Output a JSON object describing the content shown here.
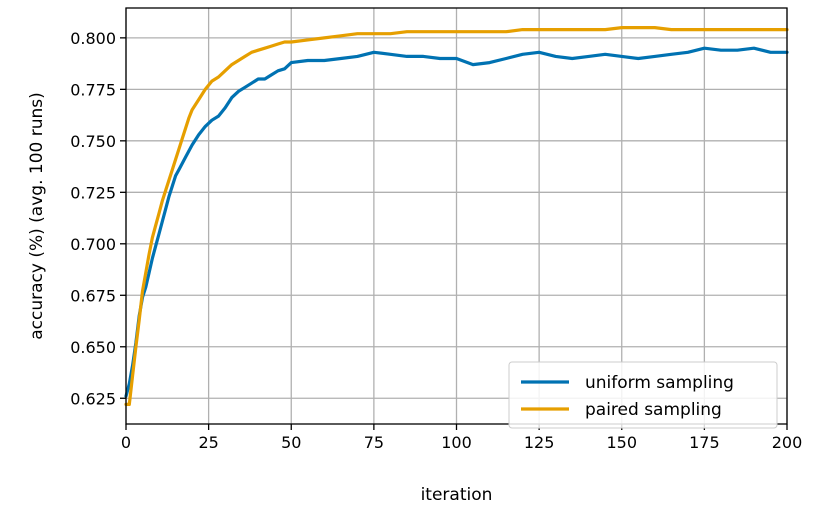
{
  "chart_data": {
    "type": "line",
    "title": "",
    "xlabel": "iteration",
    "ylabel": "accuracy (%) (avg. 100 runs)",
    "xlim": [
      0,
      200
    ],
    "ylim": [
      0.6125,
      0.8145
    ],
    "xticks": [
      "0",
      "25",
      "50",
      "75",
      "100",
      "125",
      "150",
      "175",
      "200"
    ],
    "yticks": [
      "0.625",
      "0.650",
      "0.675",
      "0.700",
      "0.725",
      "0.750",
      "0.775",
      "0.800"
    ],
    "grid": true,
    "legend_position": "lower-right",
    "x": [
      0,
      1,
      2,
      3,
      4,
      5,
      6,
      7,
      8,
      9,
      10,
      11,
      12,
      13,
      14,
      15,
      16,
      17,
      18,
      19,
      20,
      22,
      24,
      26,
      28,
      30,
      32,
      34,
      36,
      38,
      40,
      42,
      44,
      46,
      48,
      50,
      55,
      60,
      65,
      70,
      75,
      80,
      85,
      90,
      95,
      100,
      105,
      110,
      115,
      120,
      125,
      130,
      135,
      140,
      145,
      150,
      155,
      160,
      165,
      170,
      175,
      180,
      185,
      190,
      195,
      200
    ],
    "series": [
      {
        "name": "uniform sampling",
        "color": "#0072b2",
        "values": [
          0.626,
          0.632,
          0.641,
          0.652,
          0.665,
          0.674,
          0.679,
          0.686,
          0.693,
          0.699,
          0.705,
          0.711,
          0.717,
          0.723,
          0.728,
          0.733,
          0.736,
          0.739,
          0.742,
          0.745,
          0.748,
          0.753,
          0.757,
          0.76,
          0.762,
          0.766,
          0.771,
          0.774,
          0.776,
          0.778,
          0.78,
          0.78,
          0.782,
          0.784,
          0.785,
          0.788,
          0.789,
          0.789,
          0.79,
          0.791,
          0.793,
          0.792,
          0.791,
          0.791,
          0.79,
          0.79,
          0.787,
          0.788,
          0.79,
          0.792,
          0.793,
          0.791,
          0.79,
          0.791,
          0.792,
          0.791,
          0.79,
          0.791,
          0.792,
          0.793,
          0.795,
          0.794,
          0.794,
          0.795,
          0.793,
          0.793
        ]
      },
      {
        "name": "paired sampling",
        "color": "#e69f00",
        "values": [
          0.622,
          0.622,
          0.636,
          0.65,
          0.663,
          0.677,
          0.686,
          0.695,
          0.703,
          0.709,
          0.715,
          0.721,
          0.726,
          0.731,
          0.736,
          0.741,
          0.746,
          0.751,
          0.756,
          0.761,
          0.765,
          0.77,
          0.775,
          0.779,
          0.781,
          0.784,
          0.787,
          0.789,
          0.791,
          0.793,
          0.794,
          0.795,
          0.796,
          0.797,
          0.798,
          0.798,
          0.799,
          0.8,
          0.801,
          0.802,
          0.802,
          0.802,
          0.803,
          0.803,
          0.803,
          0.803,
          0.803,
          0.803,
          0.803,
          0.804,
          0.804,
          0.804,
          0.804,
          0.804,
          0.804,
          0.805,
          0.805,
          0.805,
          0.804,
          0.804,
          0.804,
          0.804,
          0.804,
          0.804,
          0.804,
          0.804
        ]
      }
    ]
  }
}
